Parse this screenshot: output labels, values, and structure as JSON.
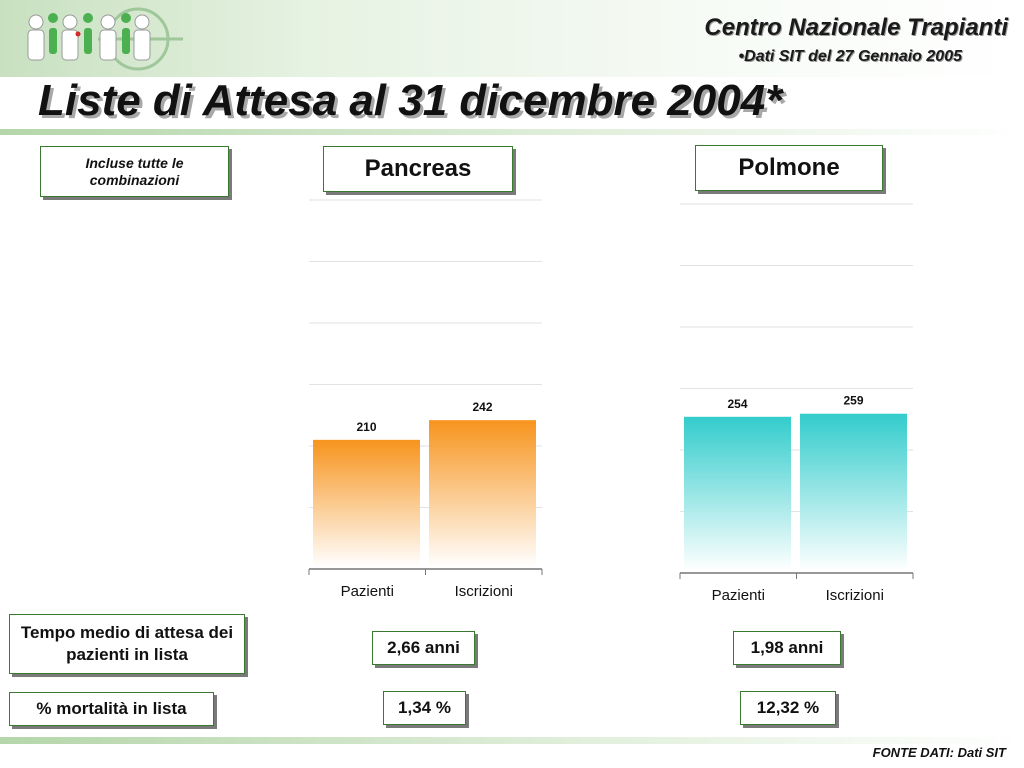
{
  "header": {
    "org_name": "Centro Nazionale Trapianti",
    "subtitle": "•Dati SIT del 27 Gennaio 2005",
    "title": "Liste di Attesa al 31 dicembre 2004*"
  },
  "note": "Incluse tutte le combinazioni",
  "row_labels": {
    "wait": "Tempo medio di attesa dei pazienti in lista",
    "mortality": "% mortalità in  lista"
  },
  "footer": "FONTE DATI: Dati SIT",
  "colors": {
    "pancreas_bar": "#f7941d",
    "polmone_bar": "#33cccc",
    "accent_border": "#3a7a30"
  },
  "chart_data": [
    {
      "type": "bar",
      "title": "Pancreas",
      "categories": [
        "Pazienti",
        "Iscrizioni"
      ],
      "values": [
        210,
        242
      ],
      "value_labels": [
        "210",
        "242"
      ],
      "ylim": [
        0,
        600
      ],
      "grid": true,
      "stats": {
        "wait": "2,66 anni",
        "mortality": "1,34 %"
      }
    },
    {
      "type": "bar",
      "title": "Polmone",
      "categories": [
        "Pazienti",
        "Iscrizioni"
      ],
      "values": [
        254,
        259
      ],
      "value_labels": [
        "254",
        "259"
      ],
      "ylim": [
        0,
        600
      ],
      "grid": true,
      "stats": {
        "wait": "1,98 anni",
        "mortality": "12,32 %"
      }
    }
  ]
}
